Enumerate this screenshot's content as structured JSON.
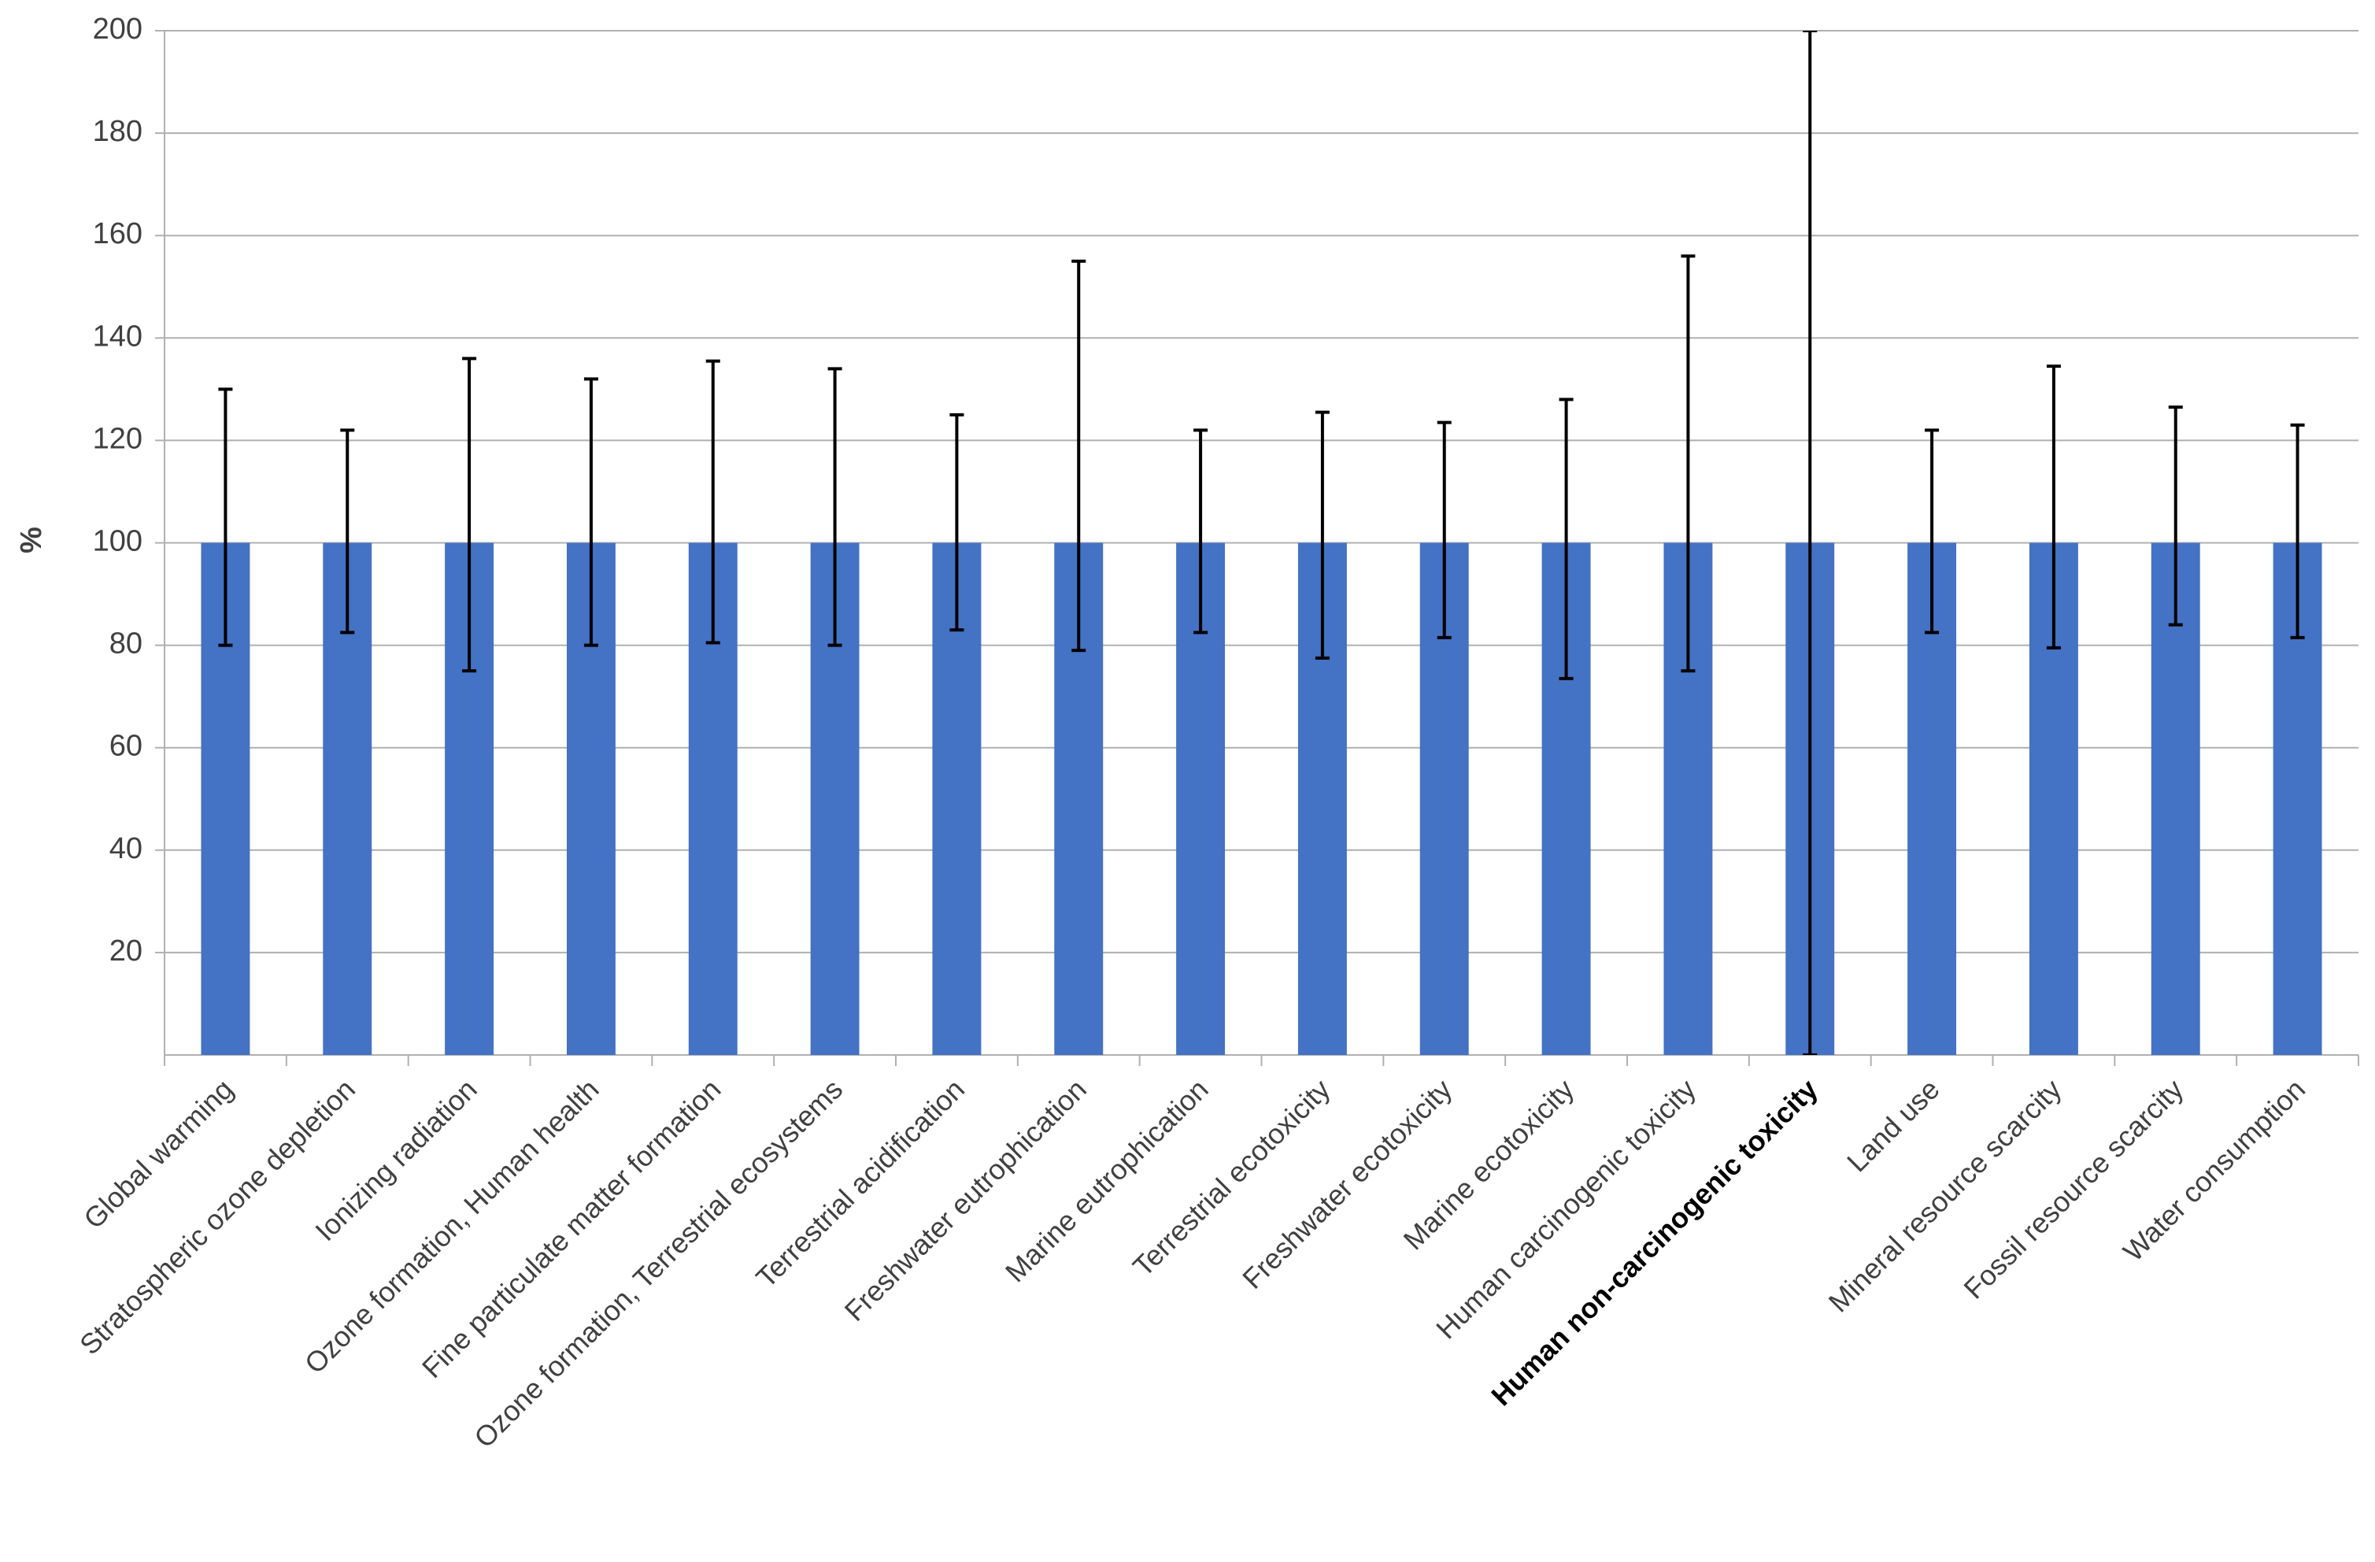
{
  "chart_data": {
    "type": "bar",
    "y_label": "%",
    "categories": [
      "Global warming",
      "Stratospheric ozone depletion",
      "Ionizing radiation",
      "Ozone formation, Human health",
      "Fine particulate matter formation",
      "Ozone formation, Terrestrial ecosystems",
      "Terrestrial acidification",
      "Freshwater eutrophication",
      "Marine eutrophication",
      "Terrestrial ecotoxicity",
      "Freshwater ecotoxicity",
      "Marine ecotoxicity",
      "Human carcinogenic toxicity",
      "Human non-carcinogenic toxicity",
      "Land use",
      "Mineral resource scarcity",
      "Fossil resource scarcity",
      "Water consumption"
    ],
    "values": [
      100,
      100,
      100,
      100,
      100,
      100,
      100,
      100,
      100,
      100,
      100,
      100,
      100,
      100,
      100,
      100,
      100,
      100
    ],
    "error_upper": [
      30,
      22,
      36,
      32,
      35.5,
      34,
      25,
      55,
      22,
      25.5,
      23.5,
      28,
      56,
      100,
      22,
      34.5,
      26.5,
      23
    ],
    "error_lower": [
      20,
      17.5,
      25,
      20,
      19.5,
      20,
      17,
      21,
      17.5,
      22.5,
      18.5,
      26.5,
      25,
      100,
      17.5,
      20.5,
      16,
      18.5
    ],
    "color": "#4472c4",
    "error_color": "#000000",
    "bold_category_index": 13,
    "ylim": [
      0,
      200
    ],
    "yticks": [
      20,
      40,
      60,
      80,
      100,
      120,
      140,
      160,
      180,
      200
    ],
    "grid": true
  }
}
